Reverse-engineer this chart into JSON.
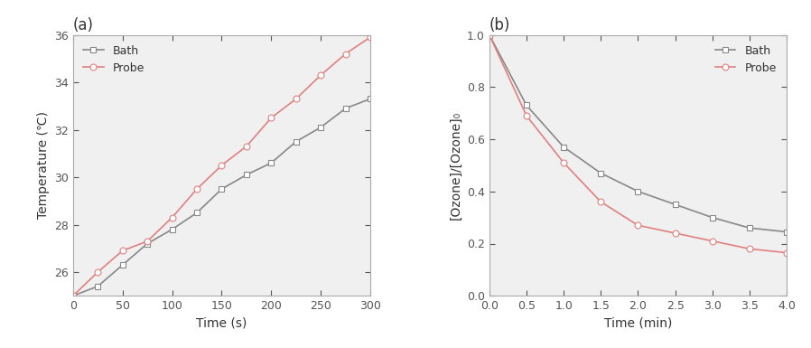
{
  "panel_a": {
    "title": "(a)",
    "xlabel": "Time (s)",
    "ylabel": "Temperature (℃)",
    "xlim": [
      0,
      300
    ],
    "ylim": [
      25,
      36
    ],
    "xticks": [
      0,
      50,
      100,
      150,
      200,
      250,
      300
    ],
    "yticks": [
      26,
      28,
      30,
      32,
      34,
      36
    ],
    "bath_x": [
      0,
      25,
      50,
      75,
      100,
      125,
      150,
      175,
      200,
      225,
      250,
      275,
      300
    ],
    "bath_y": [
      25.0,
      25.4,
      26.3,
      27.2,
      27.8,
      28.5,
      29.5,
      30.1,
      30.6,
      31.5,
      32.1,
      32.9,
      33.3
    ],
    "probe_x": [
      0,
      25,
      50,
      75,
      100,
      125,
      150,
      175,
      200,
      225,
      250,
      275,
      300
    ],
    "probe_y": [
      25.0,
      26.0,
      26.9,
      27.3,
      28.3,
      29.5,
      30.5,
      31.3,
      32.5,
      33.3,
      34.3,
      35.2,
      35.9
    ],
    "bath_color": "#888888",
    "probe_color": "#e08080",
    "bath_marker": "s",
    "probe_marker": "o",
    "linewidth": 1.2,
    "markersize": 5
  },
  "panel_b": {
    "title": "(b)",
    "xlabel": "Time (min)",
    "ylabel": "[Ozone]/[Ozone]₀",
    "xlim": [
      0,
      4.0
    ],
    "ylim": [
      0.0,
      1.0
    ],
    "xticks": [
      0.0,
      0.5,
      1.0,
      1.5,
      2.0,
      2.5,
      3.0,
      3.5,
      4.0
    ],
    "yticks": [
      0.0,
      0.2,
      0.4,
      0.6,
      0.8,
      1.0
    ],
    "bath_x": [
      0.0,
      0.5,
      1.0,
      1.5,
      2.0,
      2.5,
      3.0,
      3.5,
      4.0
    ],
    "bath_y": [
      1.0,
      0.73,
      0.57,
      0.47,
      0.4,
      0.35,
      0.3,
      0.26,
      0.245
    ],
    "probe_x": [
      0.0,
      0.5,
      1.0,
      1.5,
      2.0,
      2.5,
      3.0,
      3.5,
      4.0
    ],
    "probe_y": [
      1.0,
      0.69,
      0.51,
      0.36,
      0.27,
      0.24,
      0.21,
      0.18,
      0.165
    ],
    "bath_color": "#888888",
    "probe_color": "#e08080",
    "bath_marker": "s",
    "probe_marker": "o",
    "linewidth": 1.2,
    "markersize": 5
  },
  "figure_bg": "#ffffff",
  "axes_bg": "#f0f0f0",
  "spine_color": "#aaaaaa",
  "tick_color": "#555555",
  "label_color": "#333333",
  "legend_bath": "Bath",
  "legend_probe": "Probe",
  "title_fontsize": 12,
  "label_fontsize": 10,
  "tick_fontsize": 9,
  "legend_fontsize": 9
}
